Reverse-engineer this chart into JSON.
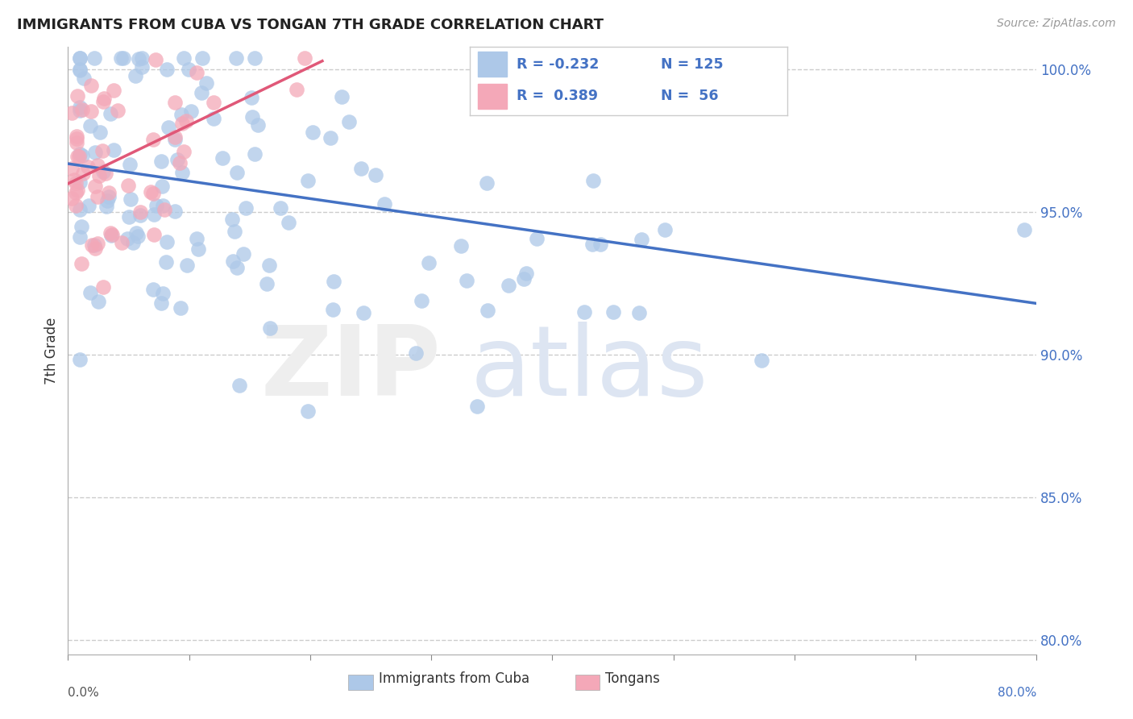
{
  "title": "IMMIGRANTS FROM CUBA VS TONGAN 7TH GRADE CORRELATION CHART",
  "source": "Source: ZipAtlas.com",
  "ylabel": "7th Grade",
  "label_cuba": "Immigrants from Cuba",
  "label_tongan": "Tongans",
  "xmin": 0.0,
  "xmax": 0.08,
  "ymin": 0.795,
  "ymax": 1.008,
  "yticks": [
    0.8,
    0.85,
    0.9,
    0.95,
    1.0
  ],
  "xticks": [
    0.0,
    0.01,
    0.02,
    0.03,
    0.04,
    0.05,
    0.06,
    0.07,
    0.08
  ],
  "legend_R1": "-0.232",
  "legend_N1": "125",
  "legend_R2": "0.389",
  "legend_N2": "56",
  "color_blue": "#adc8e8",
  "color_pink": "#f4a8b8",
  "line_blue": "#4472c4",
  "line_pink": "#e05878",
  "grid_color": "#cccccc",
  "blue_line_x0": 0.0,
  "blue_line_y0": 0.967,
  "blue_line_x1": 0.08,
  "blue_line_y1": 0.918,
  "pink_line_x0": 0.0,
  "pink_line_y0": 0.96,
  "pink_line_x1": 0.021,
  "pink_line_y1": 1.003
}
